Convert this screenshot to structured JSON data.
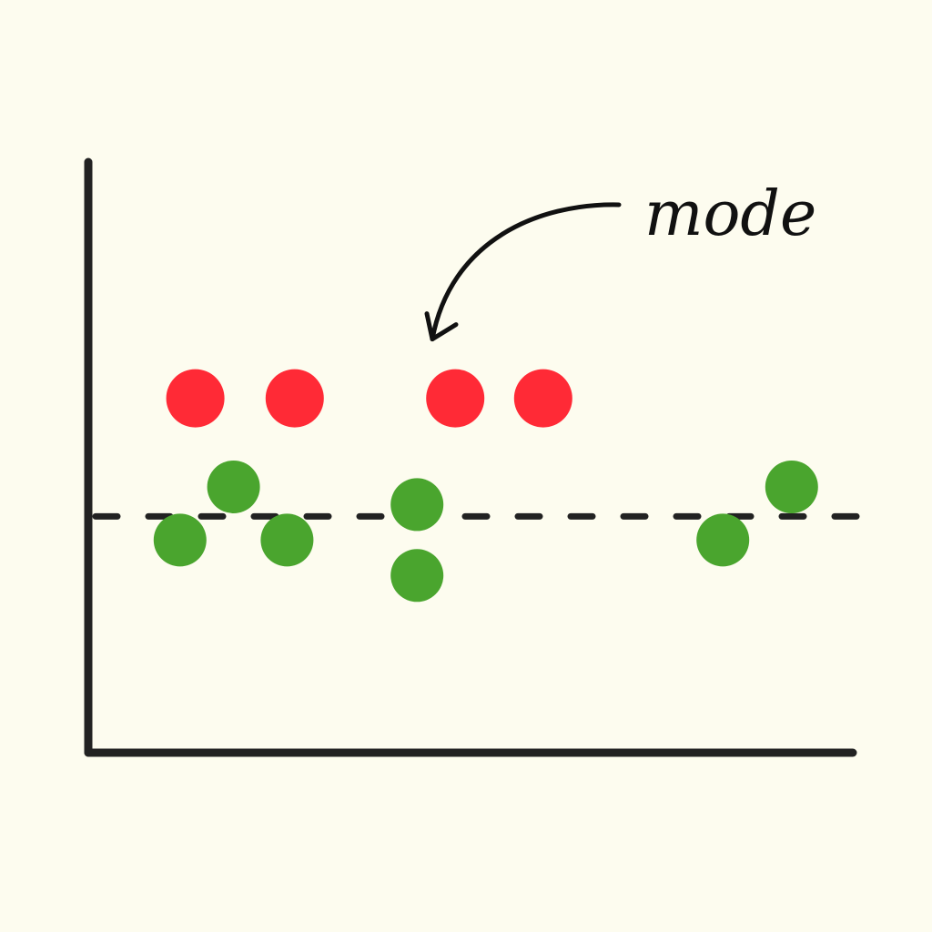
{
  "chart_data": {
    "type": "scatter",
    "title": "",
    "xlabel": "",
    "ylabel": "",
    "grid": false,
    "xlim": [
      0,
      10
    ],
    "ylim": [
      0,
      10
    ],
    "reference_line": {
      "y": 4.0,
      "style": "dashed"
    },
    "annotation": {
      "text": "mode",
      "points_to": {
        "x": 4.5,
        "y": 6.0
      }
    },
    "series": [
      {
        "color": "#ff2a36",
        "points": [
          {
            "x": 1.4,
            "y": 6.0
          },
          {
            "x": 2.7,
            "y": 6.0
          },
          {
            "x": 4.8,
            "y": 6.0
          },
          {
            "x": 5.95,
            "y": 6.0
          }
        ]
      },
      {
        "color": "#4aa52e",
        "points": [
          {
            "x": 1.2,
            "y": 3.6
          },
          {
            "x": 1.9,
            "y": 4.5
          },
          {
            "x": 2.6,
            "y": 3.6
          },
          {
            "x": 4.3,
            "y": 4.2
          },
          {
            "x": 4.3,
            "y": 3.0
          },
          {
            "x": 8.3,
            "y": 3.6
          },
          {
            "x": 9.2,
            "y": 4.5
          }
        ]
      }
    ]
  },
  "colors": {
    "background": "#fdfcef",
    "axis": "#222222"
  }
}
